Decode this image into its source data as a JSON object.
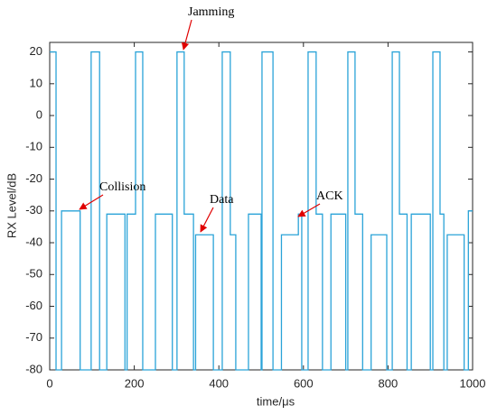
{
  "chart_data": {
    "type": "line",
    "xlabel": "time/μs",
    "ylabel": "RX Level/dB",
    "xlim": [
      0,
      1000
    ],
    "ylim": [
      -80,
      23
    ],
    "xticks": [
      0,
      200,
      400,
      600,
      800,
      1000
    ],
    "yticks": [
      -80,
      -70,
      -60,
      -50,
      -40,
      -30,
      -20,
      -10,
      0,
      10,
      20
    ],
    "grid": false,
    "annotations": [
      "Jamming",
      "Collision",
      "Data",
      "ACK"
    ],
    "series": [
      {
        "color": "#2aa3d8",
        "x": [
          0,
          15,
          15,
          28,
          28,
          72,
          72,
          98,
          98,
          118,
          118,
          135,
          135,
          178,
          178,
          183,
          183,
          203,
          203,
          220,
          220,
          250,
          250,
          290,
          290,
          301,
          301,
          318,
          318,
          340,
          340,
          345,
          345,
          387,
          387,
          408,
          408,
          427,
          427,
          440,
          440,
          470,
          470,
          500,
          500,
          502,
          502,
          528,
          528,
          548,
          548,
          588,
          588,
          596,
          596,
          611,
          611,
          630,
          630,
          645,
          645,
          665,
          665,
          700,
          700,
          705,
          705,
          722,
          722,
          740,
          740,
          760,
          760,
          797,
          797,
          810,
          810,
          827,
          827,
          845,
          845,
          855,
          855,
          900,
          900,
          906,
          906,
          923,
          923,
          932,
          932,
          940,
          940,
          980,
          980,
          990,
          990,
          1000
        ],
        "values": [
          20,
          20,
          -80,
          -80,
          -30,
          -30,
          -80,
          -80,
          20,
          20,
          -80,
          -80,
          -31,
          -31,
          -80,
          -80,
          -31,
          -31,
          20,
          20,
          -80,
          -80,
          -31,
          -31,
          -80,
          -80,
          20,
          20,
          -31,
          -31,
          -80,
          -80,
          -37.5,
          -37.5,
          -80,
          -80,
          20,
          20,
          -37.5,
          -37.5,
          -80,
          -80,
          -31,
          -31,
          -80,
          -80,
          20,
          20,
          -80,
          -80,
          -37.5,
          -37.5,
          -31,
          -31,
          -80,
          -80,
          20,
          20,
          -31,
          -31,
          -80,
          -80,
          -31,
          -31,
          -80,
          -80,
          20,
          20,
          -31,
          -31,
          -80,
          -80,
          -37.5,
          -37.5,
          -80,
          -80,
          20,
          20,
          -31,
          -31,
          -80,
          -80,
          -31,
          -31,
          -80,
          -80,
          20,
          20,
          -31,
          -31,
          -80,
          -80,
          -37.5,
          -37.5,
          -80,
          -80,
          -30,
          -30
        ]
      }
    ]
  }
}
